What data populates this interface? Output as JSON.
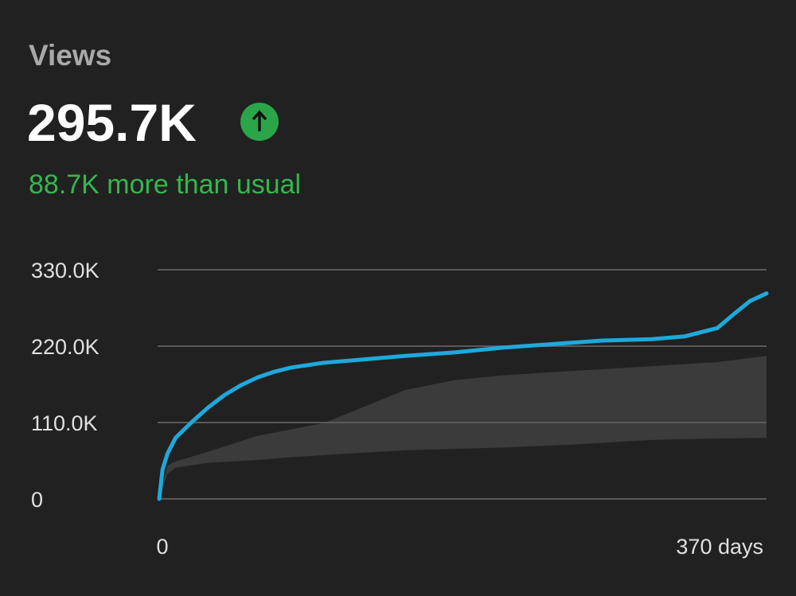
{
  "header": {
    "title": "Views",
    "value": "295.7K",
    "note": "88.7K more than usual"
  },
  "chart_data": {
    "type": "line",
    "xlim": [
      0,
      370
    ],
    "xticks": [
      0,
      {
        "value": 370,
        "label": "370 days"
      }
    ],
    "ylim": [
      0,
      330000
    ],
    "yticks": [
      0,
      {
        "value": 110000,
        "label": "110.0K"
      },
      {
        "value": 220000,
        "label": "220.0K"
      },
      {
        "value": 330000,
        "label": "330.0K"
      }
    ],
    "grid": true,
    "series": [
      {
        "color": "#1ea9dc",
        "x": [
          0,
          2,
          5,
          10,
          20,
          30,
          40,
          50,
          60,
          70,
          80,
          100,
          120,
          150,
          180,
          210,
          240,
          270,
          300,
          320,
          340,
          350,
          360,
          370
        ],
        "values": [
          0,
          42000,
          65000,
          88000,
          111000,
          132000,
          150000,
          164000,
          175000,
          183000,
          189000,
          196000,
          200000,
          206000,
          211000,
          218000,
          223000,
          228000,
          230000,
          234000,
          246000,
          266000,
          285000,
          296000
        ]
      }
    ],
    "band": {
      "color": "#3b3b3b",
      "x": [
        0,
        5,
        10,
        30,
        60,
        80,
        100,
        120,
        150,
        180,
        210,
        250,
        300,
        340,
        370
      ],
      "upper": [
        0,
        48000,
        54000,
        68000,
        91000,
        100000,
        109000,
        128000,
        157000,
        171000,
        178000,
        184000,
        191000,
        197000,
        206000
      ],
      "lower": [
        0,
        36000,
        45000,
        52000,
        56000,
        60000,
        63000,
        66000,
        70000,
        72000,
        74000,
        78000,
        85000,
        87000,
        88000
      ]
    }
  }
}
